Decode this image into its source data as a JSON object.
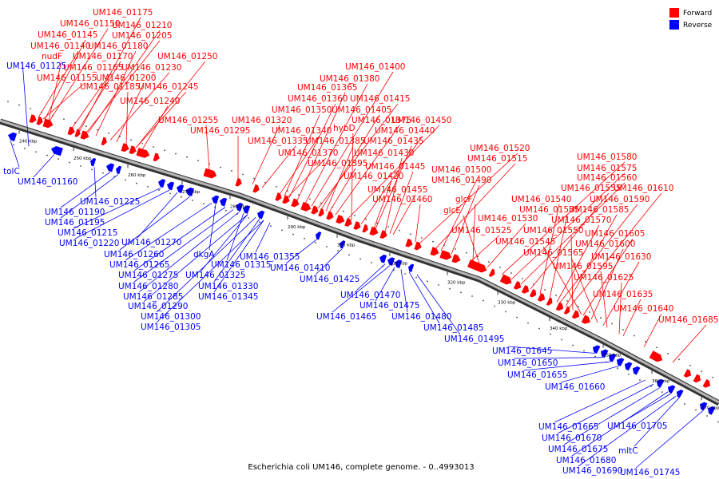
{
  "caption": "Escherichia coli UM146, complete genome. - 0..4993013",
  "legend": [
    {
      "label": "Forward",
      "color": "#ff0000"
    },
    {
      "label": "Reverse",
      "color": "#0000ff"
    }
  ],
  "colors": {
    "forward": "#ff0000",
    "reverse": "#0000ff",
    "backbone": "#555555"
  },
  "ticks": [
    "240 kbp",
    "250 kbp",
    "260 kbp",
    "270 kbp",
    "280 kbp",
    "290 kbp",
    "300 kbp",
    "310 kbp",
    "320 kbp",
    "330 kbp",
    "340 kbp",
    "350 kbp",
    "360 kbp",
    "370 kbp"
  ],
  "forward_labels": [
    "UM146_01175",
    "UM146_01150",
    "UM146_01210",
    "UM146_01145",
    "UM146_01205",
    "UM146_01140",
    "UM146_01180",
    "nudF",
    "UM146_01170",
    "UM146_01250",
    "UM146_01165",
    "UM146_01230",
    "UM146_01155",
    "UM146_01200",
    "UM146_01185",
    "UM146_01245",
    "UM146_01240",
    "UM146_01255",
    "UM146_01295",
    "UM146_01400",
    "UM146_01380",
    "UM146_01365",
    "UM146_01360",
    "UM146_01415",
    "UM146_01350",
    "UM146_01405",
    "UM146_01320",
    "UM146_01375",
    "UM146_01450",
    "UM146_01340",
    "hybD",
    "UM146_01440",
    "UM146_01335",
    "UM146_01385",
    "UM146_01435",
    "UM146_01370",
    "UM146_01430",
    "UM146_01395",
    "UM146_01445",
    "UM146_01420",
    "UM146_01455",
    "UM146_01460",
    "UM146_01520",
    "UM146_01515",
    "UM146_01500",
    "UM146_01490",
    "glcF",
    "glcE",
    "UM146_01525",
    "UM146_01530",
    "UM146_01580",
    "UM146_01575",
    "UM146_01560",
    "UM146_01555",
    "UM146_01610",
    "UM146_01540",
    "UM146_01590",
    "UM146_01535",
    "UM146_01585",
    "UM146_01570",
    "UM146_01550",
    "UM146_01545",
    "UM146_01605",
    "UM146_01600",
    "UM146_01565",
    "UM146_01630",
    "UM146_01595",
    "UM146_01625",
    "UM146_01635",
    "UM146_01640",
    "UM146_01685"
  ],
  "reverse_labels": [
    "UM146_01125",
    "tolC",
    "UM146_01160",
    "UM146_01225",
    "UM146_01190",
    "UM146_01195",
    "UM146_01215",
    "UM146_01220",
    "UM146_01270",
    "UM146_01260",
    "dkgA",
    "UM146_01265",
    "UM146_01315",
    "UM146_01275",
    "UM146_01325",
    "UM146_01280",
    "UM146_01330",
    "UM146_01285",
    "UM146_01345",
    "UM146_01290",
    "UM146_01300",
    "UM146_01305",
    "UM146_01355",
    "UM146_01410",
    "UM146_01425",
    "UM146_01470",
    "UM146_01465",
    "UM146_01475",
    "UM146_01480",
    "UM146_01485",
    "UM146_01495",
    "UM146_01645",
    "UM146_01650",
    "UM146_01655",
    "UM146_01660",
    "UM146_01665",
    "UM146_01705",
    "UM146_01670",
    "UM146_01675",
    "mltC",
    "UM146_01680",
    "UM146_01690",
    "UM146_01745"
  ]
}
